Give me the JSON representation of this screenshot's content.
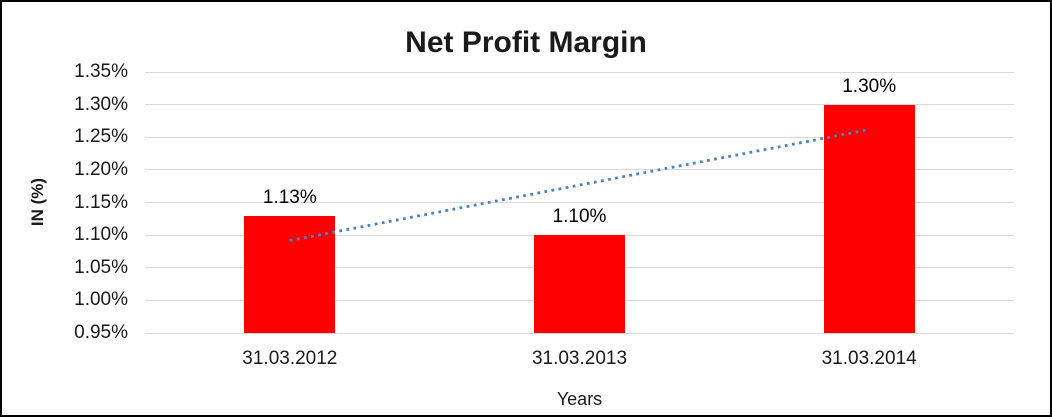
{
  "frame": {
    "background_color": "#ffffff",
    "border_color": "#000000"
  },
  "chart_data": {
    "type": "bar",
    "title": "Net Profit Margin",
    "xlabel": "Years",
    "ylabel": "IN (%)",
    "categories": [
      "31.03.2012",
      "31.03.2013",
      "31.03.2014"
    ],
    "values": [
      1.13,
      1.1,
      1.3
    ],
    "value_labels": [
      "1.13%",
      "1.10%",
      "1.30%"
    ],
    "ylim": [
      0.95,
      1.35
    ],
    "ytick_step": 0.05,
    "ytick_labels": [
      "0.95%",
      "1.00%",
      "1.05%",
      "1.10%",
      "1.15%",
      "1.20%",
      "1.25%",
      "1.30%",
      "1.35%"
    ],
    "grid": true,
    "legend": "none",
    "bar_color": "#FF0000",
    "gridline_color": "#D9D9D9",
    "label_color": "#000000",
    "trendline": {
      "type": "linear",
      "style": "dotted",
      "color": "#4F81BD",
      "start_value": 1.0917,
      "end_value": 1.2617
    }
  }
}
